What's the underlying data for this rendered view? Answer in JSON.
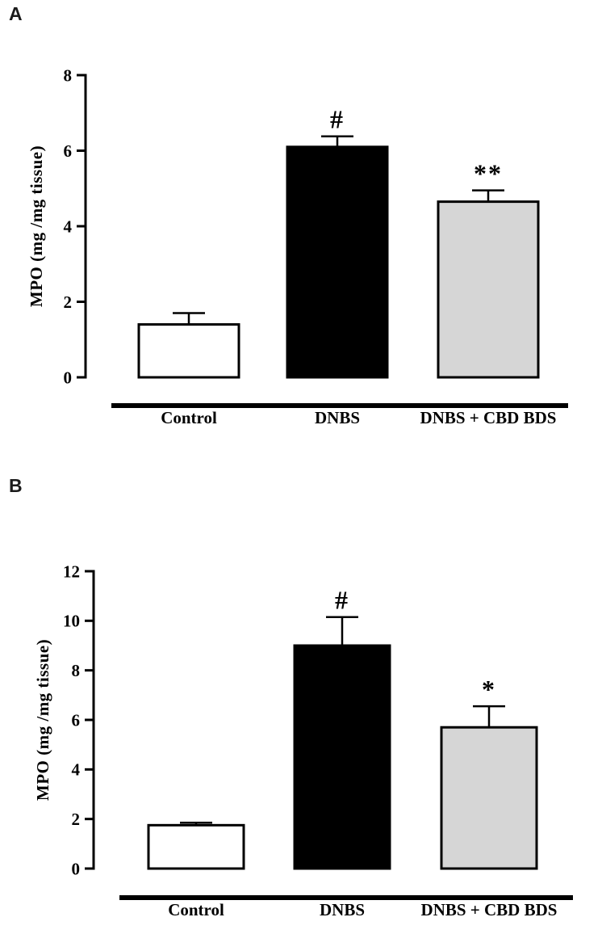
{
  "panels": [
    {
      "label": "A"
    },
    {
      "label": "B"
    }
  ],
  "chart_data": [
    {
      "type": "bar",
      "panel": "A",
      "title": "",
      "xlabel": "",
      "ylabel": "MPO (mg /mg tissue)",
      "ylim": [
        0,
        8
      ],
      "yticks": [
        0,
        2,
        4,
        6,
        8
      ],
      "grid": false,
      "legend": "none",
      "categories": [
        "Control",
        "DNBS",
        "DNBS + CBD BDS"
      ],
      "values": [
        1.4,
        6.1,
        4.65
      ],
      "errors": [
        0.3,
        0.28,
        0.3
      ],
      "annotations": [
        "",
        "#",
        "**"
      ],
      "bar_colors": [
        "#ffffff",
        "#000000",
        "#d6d6d6"
      ],
      "bar_edge_color": "#000000",
      "error_bar_color": "#000000"
    },
    {
      "type": "bar",
      "panel": "B",
      "title": "",
      "xlabel": "",
      "ylabel": "MPO (mg /mg tissue)",
      "ylim": [
        0,
        12
      ],
      "yticks": [
        0,
        2,
        4,
        6,
        8,
        10,
        12
      ],
      "grid": false,
      "legend": "none",
      "categories": [
        "Control",
        "DNBS",
        "DNBS + CBD BDS"
      ],
      "values": [
        1.75,
        9.0,
        5.7
      ],
      "errors": [
        0.1,
        1.15,
        0.85
      ],
      "annotations": [
        "",
        "#",
        "*"
      ],
      "bar_colors": [
        "#ffffff",
        "#000000",
        "#d6d6d6"
      ],
      "bar_edge_color": "#000000",
      "error_bar_color": "#000000"
    }
  ]
}
